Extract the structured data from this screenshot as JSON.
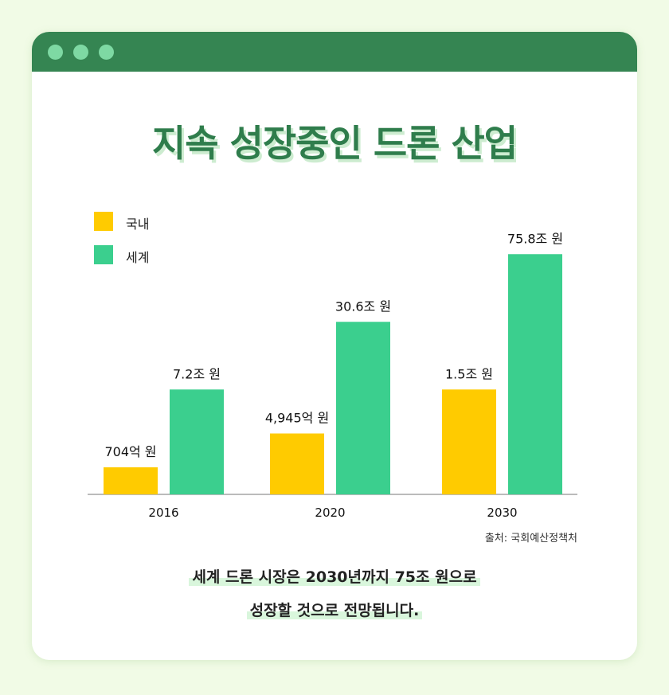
{
  "headline": "지속 성장중인 드론 산업",
  "legend": [
    {
      "label": "국내",
      "color": "#ffcb00"
    },
    {
      "label": "세계",
      "color": "#3bcf8e"
    }
  ],
  "chart_data": {
    "type": "bar",
    "categories": [
      "2016",
      "2020",
      "2030"
    ],
    "series": [
      {
        "name": "국내",
        "values": [
          704,
          4945,
          15000
        ],
        "unit": "억 원",
        "labels": [
          "704억 원",
          "4,945억 원",
          "1.5조 원"
        ]
      },
      {
        "name": "세계",
        "values": [
          72000,
          306000,
          758000
        ],
        "unit": "억 원",
        "labels": [
          "7.2조 원",
          "30.6조 원",
          "75.8조 원"
        ]
      }
    ],
    "bar_levels": {
      "국내": [
        0.08,
        0.18,
        0.31
      ],
      "세계": [
        0.31,
        0.51,
        0.71
      ]
    },
    "colors": {
      "국내": "#ffcb00",
      "세계": "#3bcf8e"
    },
    "legend_position": "top-left",
    "grid": false
  },
  "source": "출처: 국회예산정책처",
  "summary": [
    "세계 드론 시장은 2030년까지 75조 원으로",
    "성장할 것으로 전망됩니다."
  ]
}
